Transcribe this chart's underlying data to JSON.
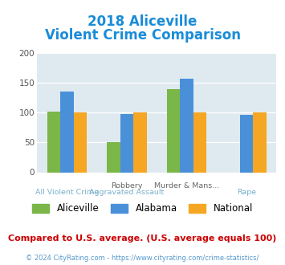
{
  "title_line1": "2018 Aliceville",
  "title_line2": "Violent Crime Comparison",
  "title_color": "#1a8cd8",
  "cat_labels_row1": [
    "",
    "Robbery",
    "Murder & Mans...",
    ""
  ],
  "cat_labels_row2": [
    "All Violent Crime",
    "Aggravated Assault",
    "",
    "Rape"
  ],
  "groups": [
    {
      "label": "Aliceville",
      "color": "#7ab648",
      "values": [
        102,
        51,
        139,
        null
      ]
    },
    {
      "label": "Alabama",
      "color": "#4a90d9",
      "values": [
        136,
        97,
        157,
        96
      ]
    },
    {
      "label": "National",
      "color": "#f5a623",
      "values": [
        100,
        100,
        100,
        100
      ]
    }
  ],
  "ylim": [
    0,
    200
  ],
  "yticks": [
    0,
    50,
    100,
    150,
    200
  ],
  "plot_bg_color": "#deeaf0",
  "footer_text": "Compared to U.S. average. (U.S. average equals 100)",
  "footer_color": "#cc0000",
  "copyright_text": "© 2024 CityRating.com - https://www.cityrating.com/crime-statistics/",
  "copyright_color": "#5599cc",
  "bar_width": 0.22
}
